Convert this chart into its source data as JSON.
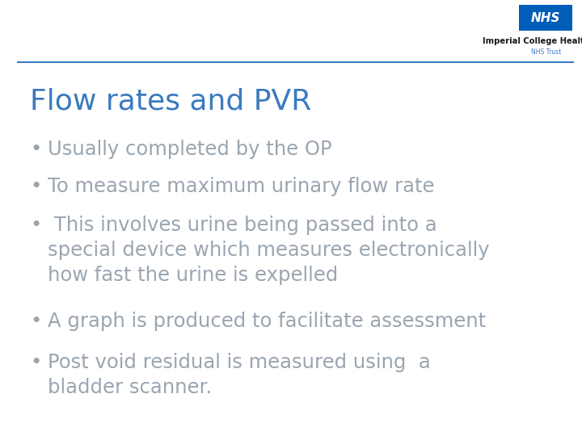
{
  "title": "Flow rates and PVR",
  "title_color": "#3a7abf",
  "title_fontsize": 26,
  "bullet_color": "#9aa5b0",
  "bullet_fontsize": 17.5,
  "background_color": "#ffffff",
  "header_line_color": "#3a7abf",
  "nhs_box_color": "#005eb8",
  "org_name": "Imperial College Healthcare",
  "org_sub": "NHS Trust",
  "bullets": [
    {
      "text": "Usually completed by the OP"
    },
    {
      "text": "To measure maximum urinary flow rate"
    },
    {
      "text": " This involves urine being passed into a\nspecial device which measures electronically\nhow fast the urine is expelled"
    },
    {
      "text": "A graph is produced to facilitate assessment"
    },
    {
      "text": "Post void residual is measured using  a\nbladder scanner."
    }
  ]
}
